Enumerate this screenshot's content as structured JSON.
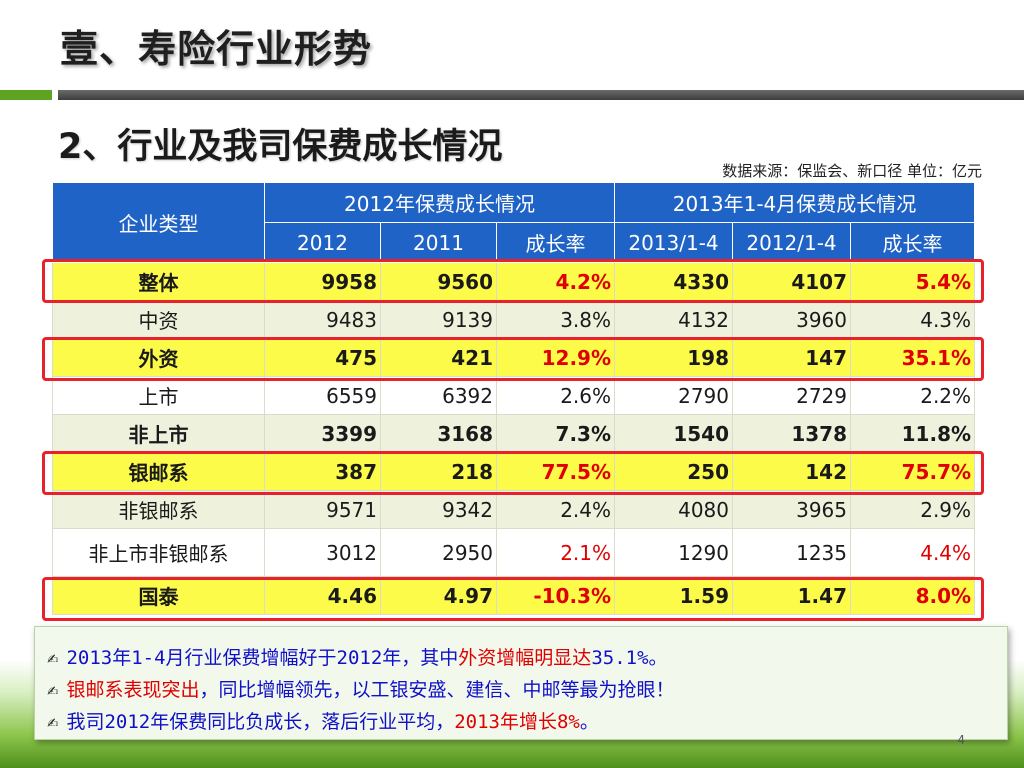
{
  "header": {
    "main_title": "壹、寿险行业形势",
    "subtitle": "2、行业及我司保费成长情况",
    "source_note": "数据来源：保监会、新口径  单位：亿元"
  },
  "table": {
    "corner_label": "企业类型",
    "group_headers": [
      "2012年保费成长情况",
      "2013年1-4月保费成长情况"
    ],
    "sub_headers": [
      "2012",
      "2011",
      "成长率",
      "2013/1-4",
      "2012/1-4",
      "成长率"
    ],
    "rows": [
      {
        "category": "整体",
        "values": [
          "9958",
          "9560",
          "4.2%",
          "4330",
          "4107",
          "5.4%"
        ]
      },
      {
        "category": "中资",
        "values": [
          "9483",
          "9139",
          "3.8%",
          "4132",
          "3960",
          "4.3%"
        ]
      },
      {
        "category": "外资",
        "values": [
          "475",
          "421",
          "12.9%",
          "198",
          "147",
          "35.1%"
        ]
      },
      {
        "category": "上市",
        "values": [
          "6559",
          "6392",
          "2.6%",
          "2790",
          "2729",
          "2.2%"
        ]
      },
      {
        "category": "非上市",
        "values": [
          "3399",
          "3168",
          "7.3%",
          "1540",
          "1378",
          "11.8%"
        ]
      },
      {
        "category": "银邮系",
        "values": [
          "387",
          "218",
          "77.5%",
          "250",
          "142",
          "75.7%"
        ]
      },
      {
        "category": "非银邮系",
        "values": [
          "9571",
          "9342",
          "2.4%",
          "4080",
          "3965",
          "2.9%"
        ]
      },
      {
        "category": "非上市非银邮系",
        "values": [
          "3012",
          "2950",
          "2.1%",
          "1290",
          "1235",
          "4.4%"
        ]
      },
      {
        "category": "国泰",
        "values": [
          "4.46",
          "4.97",
          "-10.3%",
          "1.59",
          "1.47",
          "8.0%"
        ]
      }
    ]
  },
  "notes": {
    "bullet_icon": "✍",
    "line1": {
      "a": "2013年1-4月行业保费增幅好于2012年，其中",
      "b": "外资增幅明显达",
      "c": "35.1%",
      "d": "。"
    },
    "line2": {
      "a": "银邮系表现突出",
      "b": "，同比增幅领先，以工银安盛、建信、中邮等最为抢眼！"
    },
    "line3": {
      "a": "我司2012年保费同比负成长，落后行业平均，",
      "b": "2013年增长8%",
      "c": "。"
    }
  },
  "page_number": "4",
  "colors": {
    "header_blue": "#1f63c6",
    "highlight_yellow": "#fdfb4a",
    "highlight_red": "#e8212b",
    "light_green_row": "#eef2dd",
    "accent_green": "#5ea421",
    "note_blue": "#1010c8"
  }
}
